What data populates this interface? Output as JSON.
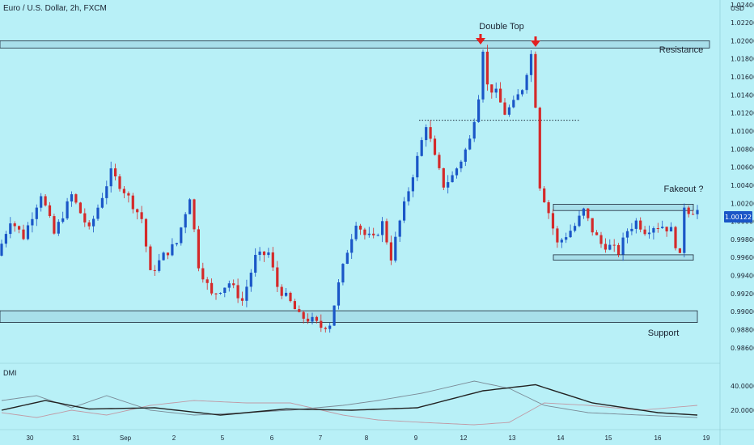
{
  "chart_data": {
    "type": "candlestick",
    "title": "Euro / U.S. Dollar, 2h, FXCM",
    "currency": "USD",
    "last_price": "1.00122",
    "price_axis": {
      "range": [
        0.985,
        1.0238
      ],
      "ticks": [
        "1.02400",
        "1.02200",
        "1.02000",
        "1.01800",
        "1.01600",
        "1.01400",
        "1.01200",
        "1.01000",
        "1.00800",
        "1.00600",
        "1.00400",
        "1.00200",
        "1.00000",
        "0.99800",
        "0.99600",
        "0.99400",
        "0.99200",
        "0.99000",
        "0.98800",
        "0.98600"
      ]
    },
    "x_axis": {
      "ticks": [
        "30",
        "31",
        "Sep",
        "2",
        "5",
        "6",
        "7",
        "8",
        "9",
        "12",
        "13",
        "14",
        "15",
        "16",
        "19"
      ]
    },
    "annotations": {
      "double_top": "Double Top",
      "resistance": "Resistance",
      "support": "Support",
      "fakeout": "Fakeout ?"
    },
    "zones": {
      "resistance": [
        1.0192,
        1.02
      ],
      "support": [
        0.9888,
        0.9901
      ],
      "range_top": [
        1.0012,
        1.0019
      ],
      "range_bottom": [
        0.9957,
        0.9963
      ]
    },
    "neckline": 1.0112,
    "price_path": [
      {
        "t": 0,
        "p": 0.9962
      },
      {
        "t": 3,
        "p": 1.0002
      },
      {
        "t": 6,
        "p": 0.9983
      },
      {
        "t": 10,
        "p": 1.0031
      },
      {
        "t": 13,
        "p": 0.9986
      },
      {
        "t": 17,
        "p": 1.0029
      },
      {
        "t": 21,
        "p": 0.999
      },
      {
        "t": 26,
        "p": 1.0054
      },
      {
        "t": 29,
        "p": 1.0034
      },
      {
        "t": 33,
        "p": 1.0003
      },
      {
        "t": 35,
        "p": 0.9942
      },
      {
        "t": 38,
        "p": 0.9962
      },
      {
        "t": 41,
        "p": 0.9976
      },
      {
        "t": 44,
        "p": 1.0028
      },
      {
        "t": 46,
        "p": 0.9952
      },
      {
        "t": 49,
        "p": 0.9918
      },
      {
        "t": 53,
        "p": 0.9932
      },
      {
        "t": 56,
        "p": 0.9912
      },
      {
        "t": 59,
        "p": 0.996
      },
      {
        "t": 62,
        "p": 0.9965
      },
      {
        "t": 64,
        "p": 0.9928
      },
      {
        "t": 67,
        "p": 0.991
      },
      {
        "t": 69,
        "p": 0.9895
      },
      {
        "t": 72,
        "p": 0.989
      },
      {
        "t": 74,
        "p": 0.9883
      },
      {
        "t": 76,
        "p": 0.9887
      },
      {
        "t": 78,
        "p": 0.993
      },
      {
        "t": 80,
        "p": 0.9968
      },
      {
        "t": 82,
        "p": 1.0
      },
      {
        "t": 84,
        "p": 0.9985
      },
      {
        "t": 86,
        "p": 0.998
      },
      {
        "t": 88,
        "p": 0.9998
      },
      {
        "t": 90,
        "p": 0.996
      },
      {
        "t": 92,
        "p": 1.0
      },
      {
        "t": 94,
        "p": 1.0035
      },
      {
        "t": 96,
        "p": 1.007
      },
      {
        "t": 98,
        "p": 1.0108
      },
      {
        "t": 100,
        "p": 1.007
      },
      {
        "t": 102,
        "p": 1.004
      },
      {
        "t": 104,
        "p": 1.005
      },
      {
        "t": 106,
        "p": 1.0068
      },
      {
        "t": 108,
        "p": 1.009
      },
      {
        "t": 110,
        "p": 1.014
      },
      {
        "t": 111,
        "p": 1.0192
      },
      {
        "t": 112,
        "p": 1.015
      },
      {
        "t": 114,
        "p": 1.0142
      },
      {
        "t": 116,
        "p": 1.012
      },
      {
        "t": 118,
        "p": 1.013
      },
      {
        "t": 120,
        "p": 1.0148
      },
      {
        "t": 122,
        "p": 1.0185
      },
      {
        "t": 123,
        "p": 1.013
      },
      {
        "t": 124,
        "p": 1.004
      },
      {
        "t": 126,
        "p": 1.001
      },
      {
        "t": 128,
        "p": 0.9975
      },
      {
        "t": 130,
        "p": 0.9985
      },
      {
        "t": 132,
        "p": 0.9995
      },
      {
        "t": 134,
        "p": 1.0012
      },
      {
        "t": 136,
        "p": 0.999
      },
      {
        "t": 138,
        "p": 0.9975
      },
      {
        "t": 140,
        "p": 0.9972
      },
      {
        "t": 142,
        "p": 0.9966
      },
      {
        "t": 144,
        "p": 0.999
      },
      {
        "t": 146,
        "p": 1.0
      },
      {
        "t": 148,
        "p": 0.999
      },
      {
        "t": 150,
        "p": 0.9995
      },
      {
        "t": 152,
        "p": 0.9995
      },
      {
        "t": 154,
        "p": 0.999
      },
      {
        "t": 156,
        "p": 0.996
      },
      {
        "t": 157,
        "p": 1.0018
      },
      {
        "t": 158,
        "p": 1.0012
      },
      {
        "t": 159,
        "p": 1.0012
      }
    ],
    "indicator": {
      "name": "DMI",
      "ticks": [
        "40.0000",
        "20.0000"
      ],
      "adx": [
        {
          "t": 0,
          "v": 22
        },
        {
          "t": 10,
          "v": 30
        },
        {
          "t": 20,
          "v": 23
        },
        {
          "t": 35,
          "v": 24
        },
        {
          "t": 50,
          "v": 18
        },
        {
          "t": 65,
          "v": 23
        },
        {
          "t": 80,
          "v": 22
        },
        {
          "t": 95,
          "v": 24
        },
        {
          "t": 110,
          "v": 38
        },
        {
          "t": 122,
          "v": 43
        },
        {
          "t": 135,
          "v": 28
        },
        {
          "t": 150,
          "v": 20
        },
        {
          "t": 159,
          "v": 18
        }
      ],
      "plus_di": [
        {
          "t": 0,
          "v": 30
        },
        {
          "t": 8,
          "v": 34
        },
        {
          "t": 16,
          "v": 24
        },
        {
          "t": 24,
          "v": 34
        },
        {
          "t": 34,
          "v": 22
        },
        {
          "t": 44,
          "v": 18
        },
        {
          "t": 56,
          "v": 20
        },
        {
          "t": 66,
          "v": 22
        },
        {
          "t": 78,
          "v": 26
        },
        {
          "t": 86,
          "v": 30
        },
        {
          "t": 96,
          "v": 36
        },
        {
          "t": 108,
          "v": 46
        },
        {
          "t": 116,
          "v": 40
        },
        {
          "t": 124,
          "v": 26
        },
        {
          "t": 134,
          "v": 20
        },
        {
          "t": 146,
          "v": 18
        },
        {
          "t": 159,
          "v": 16
        }
      ],
      "minus_di": [
        {
          "t": 0,
          "v": 20
        },
        {
          "t": 8,
          "v": 16
        },
        {
          "t": 16,
          "v": 22
        },
        {
          "t": 24,
          "v": 18
        },
        {
          "t": 34,
          "v": 26
        },
        {
          "t": 44,
          "v": 30
        },
        {
          "t": 56,
          "v": 28
        },
        {
          "t": 66,
          "v": 28
        },
        {
          "t": 78,
          "v": 18
        },
        {
          "t": 86,
          "v": 14
        },
        {
          "t": 96,
          "v": 12
        },
        {
          "t": 108,
          "v": 10
        },
        {
          "t": 116,
          "v": 12
        },
        {
          "t": 124,
          "v": 28
        },
        {
          "t": 134,
          "v": 26
        },
        {
          "t": 146,
          "v": 22
        },
        {
          "t": 159,
          "v": 26
        }
      ]
    },
    "colors": {
      "background": "#b8f0f7",
      "up": "#1a56c7",
      "down": "#d42a2a",
      "zone_fill": "#a8dfea",
      "zone_stroke": "#1e2a3a",
      "arrow": "#e22020",
      "last_price_tag": "#1a56c7",
      "adx": "#222222",
      "plus_di": "#7a8a96",
      "minus_di": "#c09aa5"
    }
  }
}
